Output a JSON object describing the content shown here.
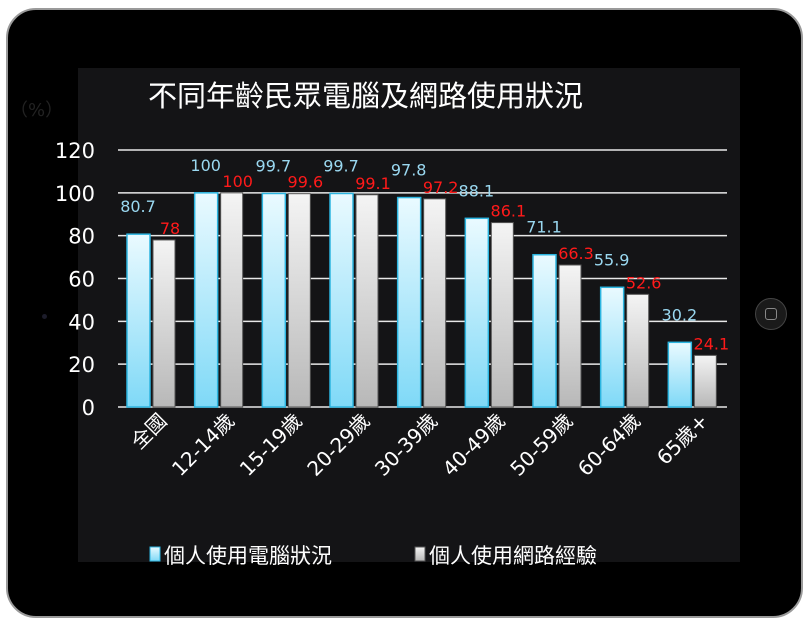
{
  "chart_data": {
    "type": "bar",
    "title": "不同年齡民眾電腦及網路使用狀況",
    "ylabel": "（%）",
    "ylim": [
      0,
      120
    ],
    "yticks": [
      0,
      20,
      40,
      60,
      80,
      100,
      120
    ],
    "grid": true,
    "legend_position": "bottom",
    "categories": [
      "全國",
      "12-14歲",
      "15-19歲",
      "20-29歲",
      "30-39歲",
      "40-49歲",
      "50-59歲",
      "60-64歲",
      "65歲+"
    ],
    "series": [
      {
        "name": "個人使用電腦狀況",
        "values": [
          80.7,
          100,
          99.7,
          99.7,
          97.8,
          88.1,
          71.1,
          55.9,
          30.2
        ],
        "color": "#7fd9f7",
        "label_color": "#9ad8f0"
      },
      {
        "name": "個人使用網路經驗",
        "values": [
          78,
          100,
          99.6,
          99.1,
          97.2,
          86.1,
          66.3,
          52.6,
          24.1
        ],
        "color": "#d0d0d0",
        "label_color": "#ff1a1a"
      }
    ]
  }
}
